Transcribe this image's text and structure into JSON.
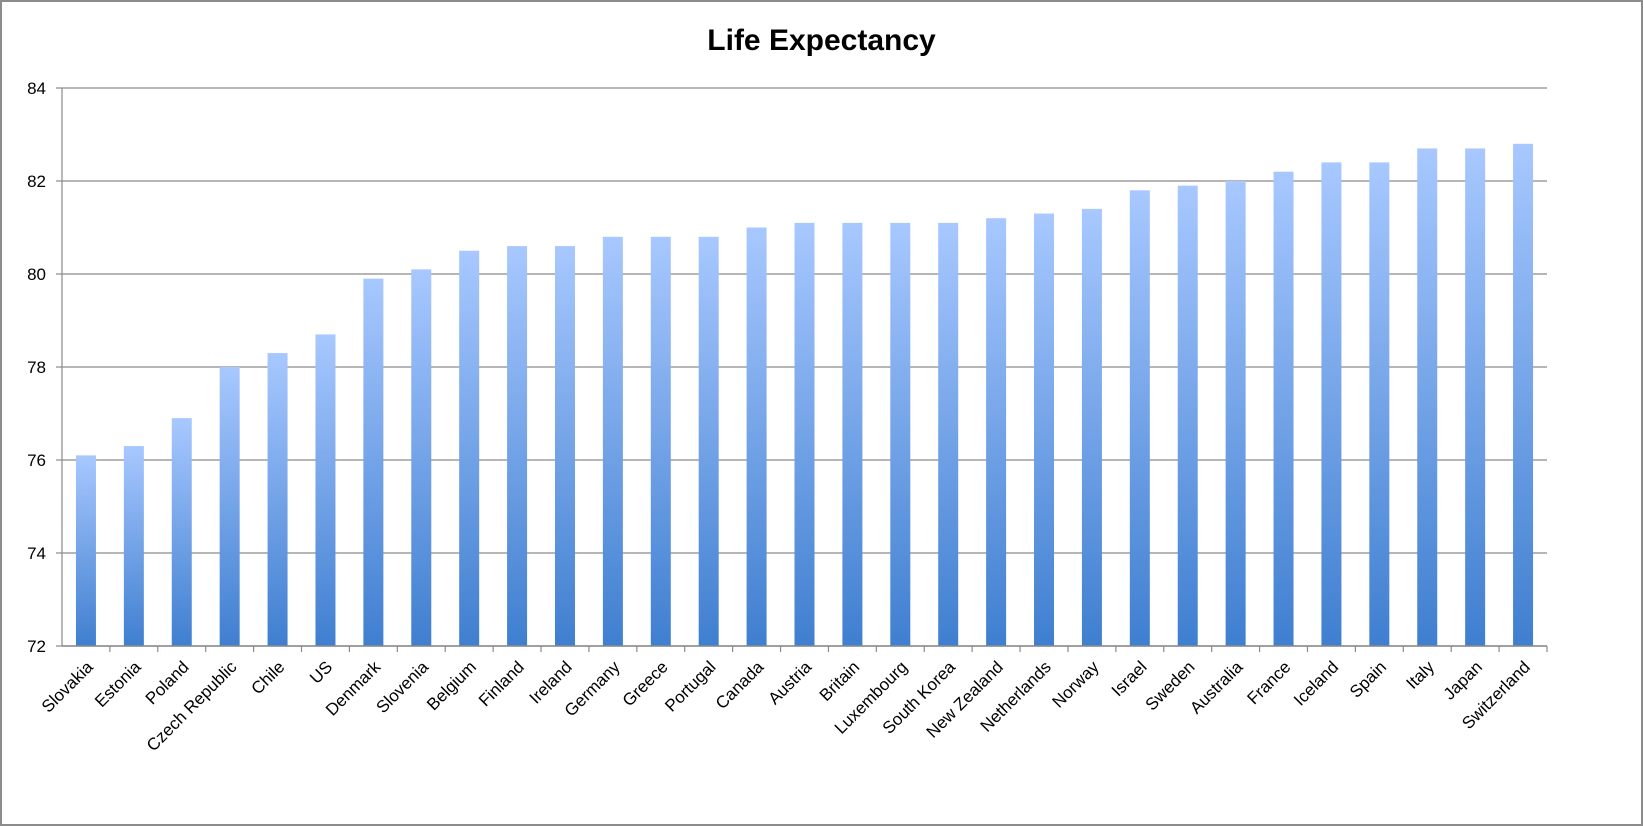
{
  "chart_data": {
    "type": "bar",
    "title": "Life Expectancy",
    "xlabel": "",
    "ylabel": "",
    "ylim": [
      72,
      84
    ],
    "yticks": [
      72,
      74,
      76,
      78,
      80,
      82,
      84
    ],
    "grid": true,
    "legend": "none",
    "bar_color_top": "#a8c8ff",
    "bar_color_bottom": "#3f7fd0",
    "categories": [
      "Slovakia",
      "Estonia",
      "Poland",
      "Czech Republic",
      "Chile",
      "US",
      "Denmark",
      "Slovenia",
      "Belgium",
      "Finland",
      "Ireland",
      "Germany",
      "Greece",
      "Portugal",
      "Canada",
      "Austria",
      "Britain",
      "Luxembourg",
      "South Korea",
      "New Zealand",
      "Netherlands",
      "Norway",
      "Israel",
      "Sweden",
      "Australia",
      "France",
      "Iceland",
      "Spain",
      "Italy",
      "Japan",
      "Switzerland"
    ],
    "values": [
      76.1,
      76.3,
      76.9,
      78.0,
      78.3,
      78.7,
      79.9,
      80.1,
      80.5,
      80.6,
      80.6,
      80.8,
      80.8,
      80.8,
      81.0,
      81.1,
      81.1,
      81.1,
      81.1,
      81.2,
      81.3,
      81.4,
      81.8,
      81.9,
      82.0,
      82.2,
      82.4,
      82.4,
      82.7,
      82.7,
      82.8
    ]
  }
}
